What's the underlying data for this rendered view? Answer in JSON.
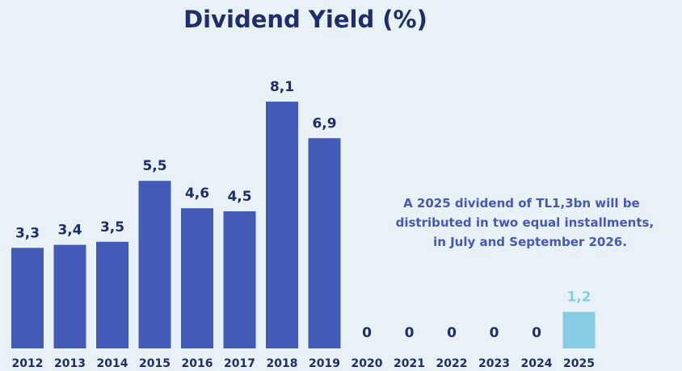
{
  "chart_data": {
    "type": "bar",
    "title": "Dividend Yield (%)",
    "categories": [
      "2012",
      "2013",
      "2014",
      "2015",
      "2016",
      "2017",
      "2018",
      "2019",
      "2020",
      "2021",
      "2022",
      "2023",
      "2024",
      "2025"
    ],
    "values": [
      3.3,
      3.4,
      3.5,
      5.5,
      4.6,
      4.5,
      8.1,
      6.9,
      0,
      0,
      0,
      0,
      0,
      1.2
    ],
    "value_labels": [
      "3,3",
      "3,4",
      "3,5",
      "5,5",
      "4,6",
      "4,5",
      "8,1",
      "6,9",
      "0",
      "0",
      "0",
      "0",
      "0",
      "1,2"
    ],
    "bar_colors": [
      "#435bb6",
      "#435bb6",
      "#435bb6",
      "#435bb6",
      "#435bb6",
      "#435bb6",
      "#435bb6",
      "#435bb6",
      "#435bb6",
      "#435bb6",
      "#435bb6",
      "#435bb6",
      "#435bb6",
      "#86cde4"
    ],
    "label_colors": [
      "#1f2d6b",
      "#1f2d6b",
      "#1f2d6b",
      "#1f2d6b",
      "#1f2d6b",
      "#1f2d6b",
      "#1f2d6b",
      "#1f2d6b",
      "#1f2d6b",
      "#1f2d6b",
      "#1f2d6b",
      "#1f2d6b",
      "#1f2d6b",
      "#86cde4"
    ],
    "ylim": [
      0,
      8.1
    ],
    "xlabel": "",
    "ylabel": "",
    "grid": false,
    "legend": "none"
  },
  "annotation": {
    "lines": [
      "A 2025 dividend of TL1,3bn will be",
      "distributed in two equal installments,",
      "in July and September 2026."
    ]
  },
  "colors": {
    "background": "#e8f1f6",
    "title": "#1f2d6b",
    "bar": "#435bb6",
    "highlight_bar": "#86cde4",
    "annotation": "#4759b3"
  }
}
